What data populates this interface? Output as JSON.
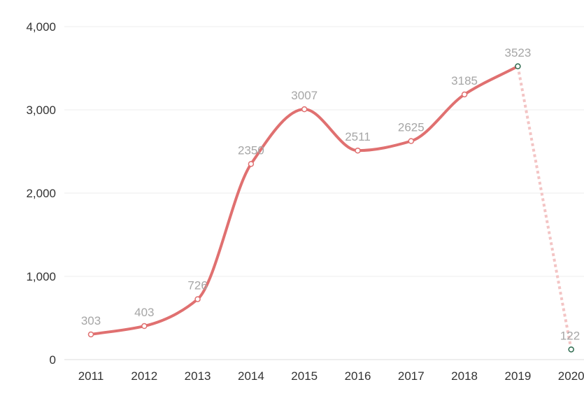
{
  "chart_data": {
    "type": "line",
    "x": [
      "2011",
      "2012",
      "2013",
      "2014",
      "2015",
      "2016",
      "2017",
      "2018",
      "2019",
      "2020"
    ],
    "series": [
      {
        "values": [
          303,
          403,
          726,
          2350,
          3007,
          2511,
          2625,
          3185,
          3523,
          122
        ]
      }
    ],
    "data_labels": [
      "303",
      "403",
      "726",
      "2350",
      "3007",
      "2511",
      "2625",
      "3185",
      "3523",
      "122"
    ],
    "y_ticks": [
      "0",
      "1,000",
      "2,000",
      "3,000",
      "4,000"
    ],
    "ylim": [
      0,
      4000
    ],
    "grid": true,
    "last_segment_style": "dotted",
    "colors": {
      "line": "#e07070",
      "line_dotted": "#f3c4c4",
      "marker_last": "#2e6b4f",
      "grid": "#eeeeee"
    }
  }
}
